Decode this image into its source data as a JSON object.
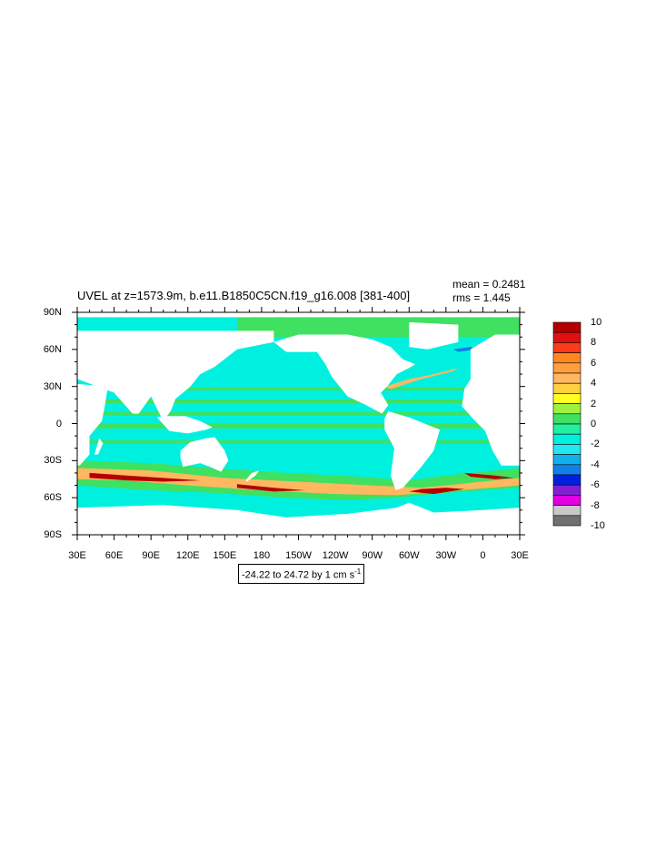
{
  "title": "UVEL at z=1573.9m, b.e11.B1850C5CN.f19_g16.008 [381-400]",
  "stats": {
    "mean": "mean = 0.2481",
    "rms": "rms = 1.445"
  },
  "range_note": {
    "text": "-24.22 to 24.72 by 1 cm s",
    "superscript": "-1"
  },
  "lat_labels": [
    "90N",
    "60N",
    "30N",
    "0",
    "30S",
    "60S",
    "90S"
  ],
  "lon_labels": [
    "30E",
    "60E",
    "90E",
    "120E",
    "150E",
    "180",
    "150W",
    "120W",
    "90W",
    "60W",
    "30W",
    "0",
    "30E"
  ],
  "colorbar": {
    "labels": [
      "10",
      "8",
      "6",
      "4",
      "2",
      "0",
      "-2",
      "-4",
      "-6",
      "-8",
      "-10"
    ],
    "colors_top_to_bottom": [
      "#b40000",
      "#e01010",
      "#ff3a1a",
      "#ff8820",
      "#ffa040",
      "#ffb860",
      "#ffd040",
      "#ffff20",
      "#a0f040",
      "#40e060",
      "#20f0a0",
      "#00f0e0",
      "#20e8f0",
      "#10b0f0",
      "#1080e8",
      "#0020e0",
      "#8020d0",
      "#e000e0",
      "#c8c8c8",
      "#707070"
    ]
  },
  "chart_data": {
    "type": "heatmap",
    "title": "UVEL at z=1573.9m, b.e11.B1850C5CN.f19_g16.008 [381-400]",
    "variable": "UVEL",
    "depth_m": 1573.9,
    "units": "cm s-1",
    "mean": 0.2481,
    "rms": 1.445,
    "min": -24.22,
    "max": 24.72,
    "contour_interval": 1,
    "lon_range": [
      30,
      390
    ],
    "lat_range": [
      -90,
      90
    ],
    "colorbar_levels": [
      -10,
      -8,
      -6,
      -4,
      -2,
      0,
      2,
      4,
      6,
      8,
      10
    ],
    "colors": {
      "land": "#ffffff",
      "background_flow": "#00f0e0",
      "weak_eastward": "#40e060",
      "moderate_eastward": "#ffb860",
      "strong_eastward": "#b40000",
      "westward": "#1080e8"
    }
  }
}
